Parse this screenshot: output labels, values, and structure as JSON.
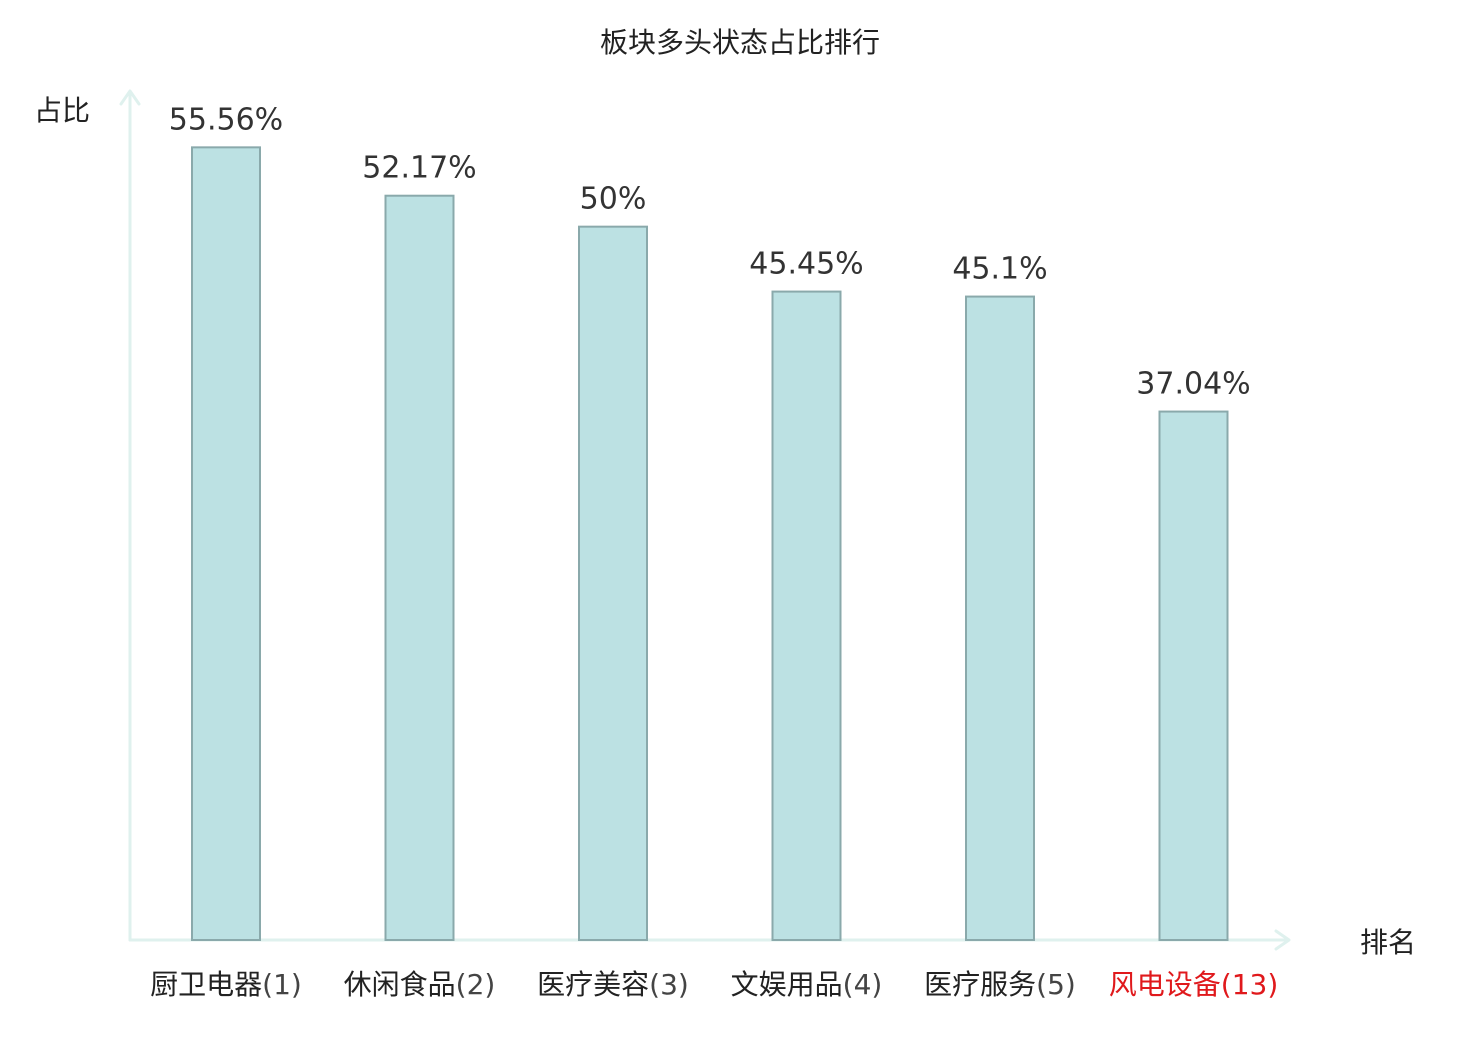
{
  "chart_data": {
    "type": "bar",
    "title": "板块多头状态占比排行",
    "ylabel": "占比",
    "xlabel": "排名",
    "ylim": [
      0,
      60
    ],
    "grid": false,
    "categories": [
      {
        "name": "厨卫电器",
        "rank": "(1)",
        "highlight": false
      },
      {
        "name": "休闲食品",
        "rank": "(2)",
        "highlight": false
      },
      {
        "name": "医疗美容",
        "rank": "(3)",
        "highlight": false
      },
      {
        "name": "文娱用品",
        "rank": "(4)",
        "highlight": false
      },
      {
        "name": "医疗服务",
        "rank": "(5)",
        "highlight": false
      },
      {
        "name": "风电设备",
        "rank": "(13)",
        "highlight": true
      }
    ],
    "values": [
      55.56,
      52.17,
      50,
      45.45,
      45.1,
      37.04
    ],
    "value_labels": [
      "55.56%",
      "52.17%",
      "50%",
      "45.45%",
      "45.1%",
      "37.04%"
    ],
    "colors": {
      "bar_fill": "#bce1e3",
      "bar_stroke": "#8aa9ab",
      "axis": "#dff1ee",
      "highlight_text": "#e0191c",
      "text": "#222222"
    }
  }
}
